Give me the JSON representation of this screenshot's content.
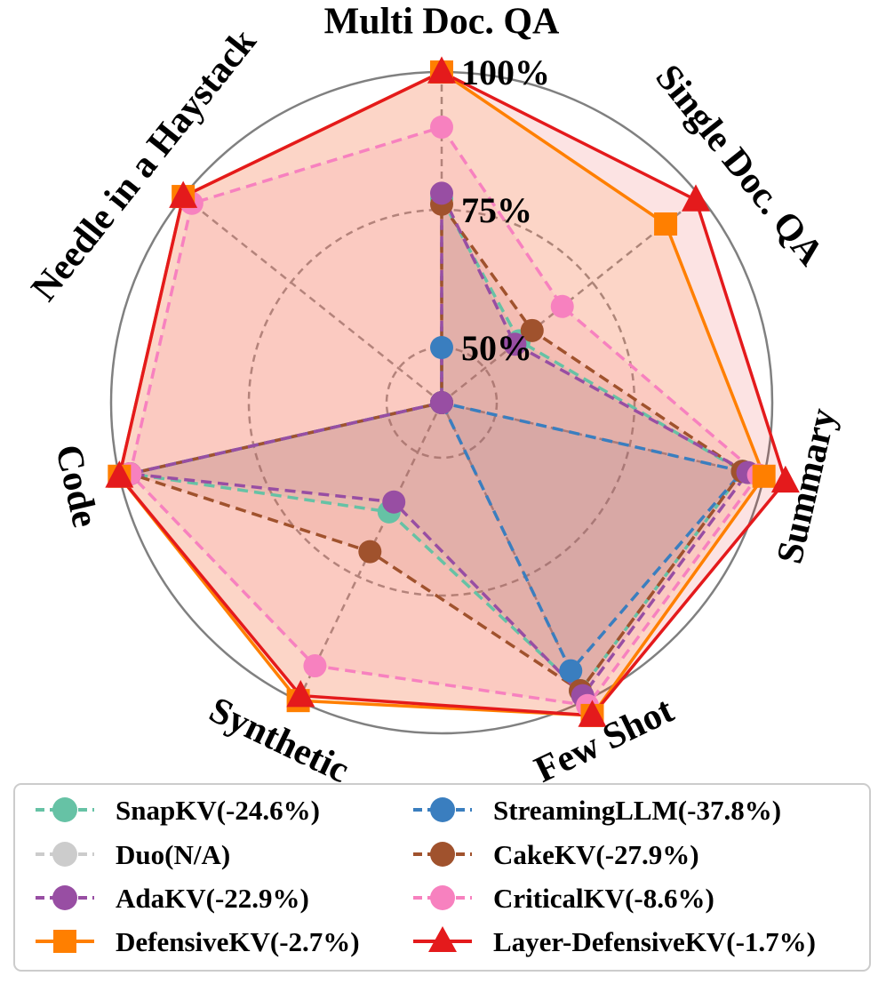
{
  "chart_data": {
    "type": "radar",
    "axes": [
      "Multi Doc. QA",
      "Single Doc. QA",
      "Summary",
      "Few Shot",
      "Synthetic",
      "Code",
      "Needle in a Haystack"
    ],
    "r_range": [
      0.4,
      1.0
    ],
    "ticks": [
      {
        "value": 0.5,
        "label": "50%"
      },
      {
        "value": 0.75,
        "label": "75%"
      },
      {
        "value": 1.0,
        "label": "100%"
      }
    ],
    "series": [
      {
        "name": "SnapKV(-24.6%)",
        "color": "#66c2a5",
        "marker": "circle",
        "dashed": true,
        "fill": false,
        "values": [
          0.77,
          0.58,
          0.96,
          0.98,
          0.62,
          0.98,
          0.4
        ]
      },
      {
        "name": "StreamingLLM(-37.8%)",
        "color": "#3a7ebf",
        "marker": "circle",
        "dashed": true,
        "fill": false,
        "values": [
          0.5,
          0.4,
          0.96,
          0.94,
          0.4,
          0.98,
          0.4
        ]
      },
      {
        "name": "Duo(N/A)",
        "color": "#cccccc",
        "marker": "circle",
        "dashed": true,
        "fill": false,
        "values": null
      },
      {
        "name": "CakeKV(-27.9%)",
        "color": "#a0522d",
        "marker": "circle",
        "dashed": true,
        "fill": false,
        "values": [
          0.76,
          0.61,
          0.96,
          0.98,
          0.7,
          0.98,
          0.4
        ]
      },
      {
        "name": "AdaKV(-22.9%)",
        "color": "#984ea3",
        "marker": "circle",
        "dashed": true,
        "fill": false,
        "values": [
          0.78,
          0.57,
          0.97,
          0.99,
          0.6,
          0.98,
          0.4
        ]
      },
      {
        "name": "CriticalKV(-8.6%)",
        "color": "#f781bf",
        "marker": "circle",
        "dashed": true,
        "fill": false,
        "values": [
          0.9,
          0.68,
          0.99,
          1.01,
          0.93,
          0.98,
          0.98
        ]
      },
      {
        "name": "DefensiveKV(-2.7%)",
        "color": "#ff7f00",
        "marker": "square",
        "dashed": false,
        "fill": true,
        "values": [
          1.0,
          0.92,
          1.0,
          1.03,
          1.0,
          1.0,
          1.0
        ]
      },
      {
        "name": "Layer-DefensiveKV(-1.7%)",
        "color": "#e41a1c",
        "marker": "triangle",
        "dashed": false,
        "fill": true,
        "values": [
          1.0,
          0.99,
          1.04,
          1.03,
          0.99,
          1.0,
          1.0
        ]
      }
    ]
  }
}
